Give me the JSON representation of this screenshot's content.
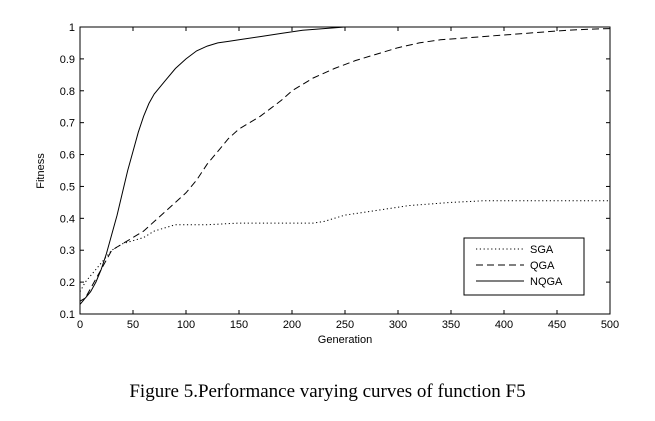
{
  "caption": "Figure 5.Performance varying curves of function F5",
  "chart_data": {
    "type": "line",
    "title": "",
    "xlabel": "Generation",
    "ylabel": "Fitness",
    "xlim": [
      0,
      500
    ],
    "ylim": [
      0.1,
      1
    ],
    "xticks": [
      0,
      50,
      100,
      150,
      200,
      250,
      300,
      350,
      400,
      450,
      500
    ],
    "yticks": [
      0.1,
      0.2,
      0.3,
      0.4,
      0.5,
      0.6,
      0.7,
      0.8,
      0.9,
      1
    ],
    "xtick_labels": [
      "0",
      "50",
      "100",
      "150",
      "200",
      "250",
      "300",
      "350",
      "400",
      "450",
      "500"
    ],
    "ytick_labels": [
      "0.1",
      "0.2",
      "0.3",
      "0.4",
      "0.5",
      "0.6",
      "0.7",
      "0.8",
      "0.9",
      "1"
    ],
    "grid": false,
    "legend_position": "lower-right",
    "series": [
      {
        "name": "SGA",
        "style": "dotted",
        "color": "#000000",
        "x": [
          0,
          5,
          10,
          15,
          20,
          25,
          30,
          35,
          40,
          50,
          60,
          70,
          80,
          90,
          100,
          120,
          150,
          180,
          200,
          220,
          230,
          240,
          250,
          270,
          290,
          310,
          330,
          350,
          380,
          420,
          460,
          500
        ],
        "y": [
          0.17,
          0.2,
          0.22,
          0.24,
          0.26,
          0.28,
          0.3,
          0.31,
          0.32,
          0.33,
          0.34,
          0.36,
          0.37,
          0.38,
          0.38,
          0.38,
          0.385,
          0.385,
          0.385,
          0.385,
          0.39,
          0.4,
          0.41,
          0.42,
          0.43,
          0.44,
          0.445,
          0.45,
          0.455,
          0.455,
          0.455,
          0.455
        ]
      },
      {
        "name": "QGA",
        "style": "dashed",
        "color": "#000000",
        "x": [
          0,
          5,
          10,
          15,
          20,
          25,
          30,
          35,
          40,
          45,
          50,
          60,
          70,
          80,
          90,
          100,
          110,
          120,
          130,
          140,
          150,
          160,
          170,
          180,
          190,
          200,
          220,
          240,
          260,
          280,
          300,
          320,
          340,
          360,
          380,
          400,
          420,
          440,
          460,
          480,
          500
        ],
        "y": [
          0.13,
          0.15,
          0.18,
          0.21,
          0.24,
          0.27,
          0.3,
          0.31,
          0.32,
          0.33,
          0.34,
          0.36,
          0.39,
          0.42,
          0.45,
          0.48,
          0.52,
          0.57,
          0.61,
          0.65,
          0.68,
          0.7,
          0.72,
          0.745,
          0.77,
          0.8,
          0.84,
          0.87,
          0.895,
          0.915,
          0.935,
          0.95,
          0.96,
          0.965,
          0.97,
          0.975,
          0.98,
          0.985,
          0.99,
          0.993,
          0.995
        ]
      },
      {
        "name": "NQGA",
        "style": "solid",
        "color": "#000000",
        "x": [
          0,
          5,
          10,
          15,
          20,
          25,
          30,
          35,
          40,
          45,
          50,
          55,
          60,
          65,
          70,
          80,
          90,
          100,
          110,
          120,
          130,
          140,
          150,
          170,
          190,
          210,
          230,
          250,
          260,
          280,
          300
        ],
        "y": [
          0.14,
          0.15,
          0.17,
          0.2,
          0.24,
          0.29,
          0.35,
          0.41,
          0.48,
          0.55,
          0.61,
          0.67,
          0.72,
          0.76,
          0.79,
          0.83,
          0.87,
          0.9,
          0.925,
          0.94,
          0.95,
          0.955,
          0.96,
          0.97,
          0.98,
          0.99,
          0.995,
          1.0,
          1.0,
          1.0,
          1.0
        ]
      }
    ]
  }
}
